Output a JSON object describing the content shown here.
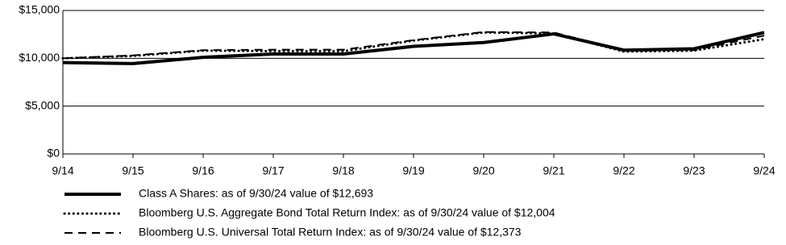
{
  "chart_data": {
    "type": "line",
    "categories": [
      "9/14",
      "9/15",
      "9/16",
      "9/17",
      "9/18",
      "9/19",
      "9/20",
      "9/21",
      "9/22",
      "9/23",
      "9/24"
    ],
    "series": [
      {
        "name": "Class A Shares: as of 9/30/24 value of $12,693",
        "color": "#000000",
        "dash": "solid",
        "values": [
          9550,
          9450,
          10100,
          10450,
          10450,
          11250,
          11650,
          12550,
          10850,
          11000,
          12693
        ]
      },
      {
        "name": "Bloomberg U.S. Aggregate Bond Total Return Index: as of 9/30/24 value of $12,004",
        "color": "#000000",
        "dash": "dotted",
        "values": [
          10000,
          10250,
          10800,
          10750,
          10750,
          11850,
          12700,
          12600,
          10700,
          10800,
          12004
        ]
      },
      {
        "name": "Bloomberg U.S. Universal Total Return Index: as of 9/30/24 value of $12,373",
        "color": "#000000",
        "dash": "dashed",
        "values": [
          10000,
          10300,
          10850,
          10900,
          10900,
          11900,
          12750,
          12700,
          10800,
          10850,
          12373
        ]
      }
    ],
    "ylim": [
      0,
      15000
    ],
    "yticks": [
      {
        "value": 0,
        "label": "$0"
      },
      {
        "value": 5000,
        "label": "$5,000"
      },
      {
        "value": 10000,
        "label": "$10,000"
      },
      {
        "value": 15000,
        "label": "$15,000"
      }
    ],
    "grid": true
  }
}
